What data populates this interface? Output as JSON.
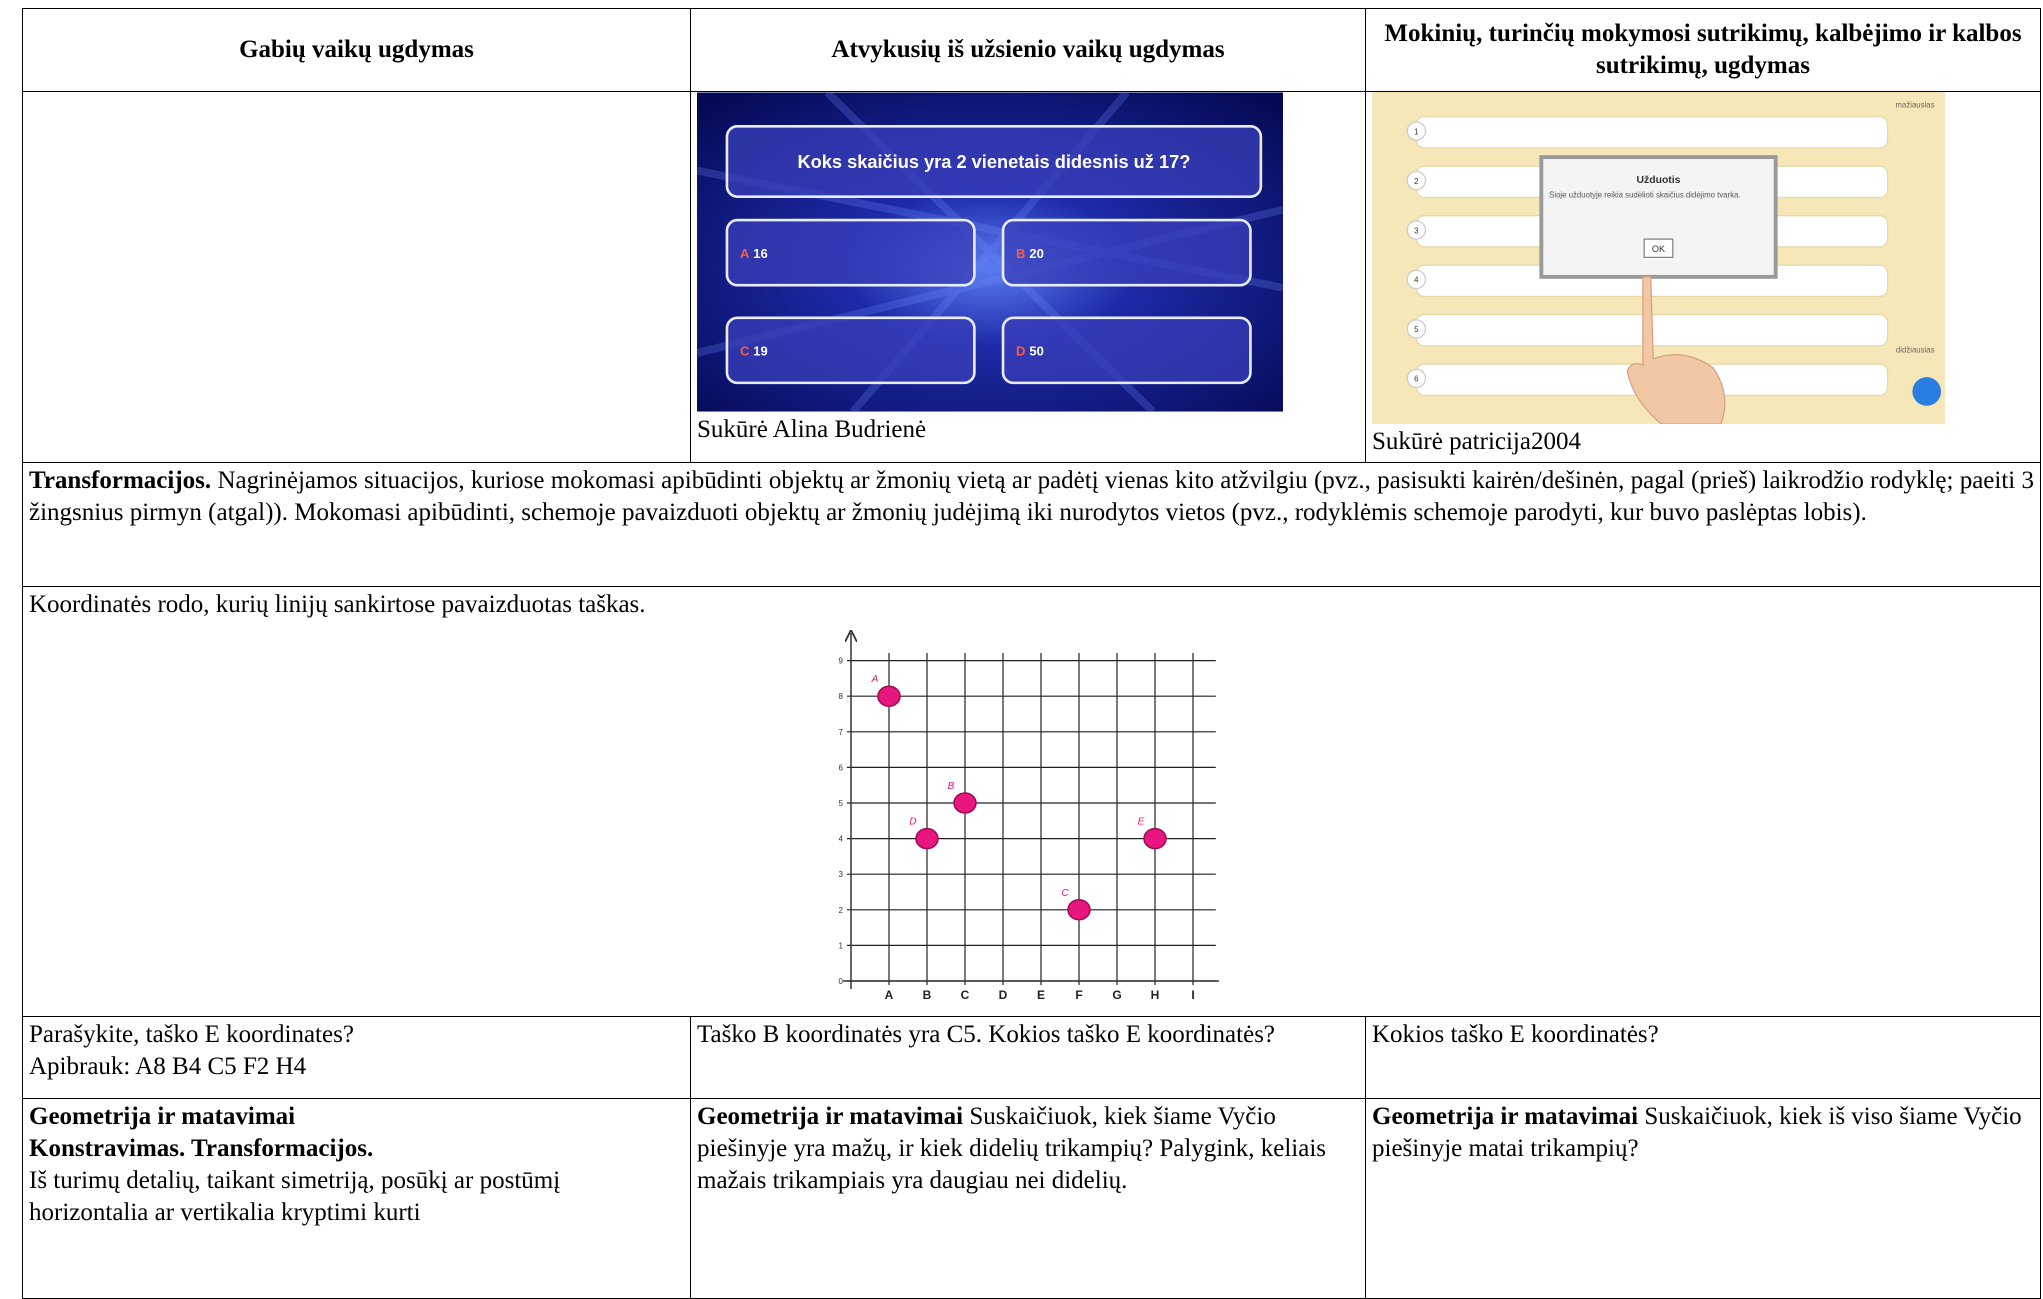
{
  "table": {
    "headers": [
      "Gabių vaikų ugdymas",
      "Atvykusių iš užsienio vaikų ugdymas",
      "Mokinių, turinčių mokymosi sutrikimų, kalbėjimo ir kalbos sutrikimų, ugdymas"
    ],
    "quiz": {
      "question": "Koks skaičius yra 2 vienetais didesnis už 17?",
      "options": [
        {
          "letter": "A",
          "text": "16"
        },
        {
          "letter": "B",
          "text": "20"
        },
        {
          "letter": "C",
          "text": "19"
        },
        {
          "letter": "D",
          "text": "50"
        }
      ],
      "caption": "Sukūrė Alina Budrienė"
    },
    "app": {
      "title": "Užduotis",
      "text": "Šioje užduotyje reikia sudėlioti skaičius didėjimo tvarka.",
      "button": "OK",
      "top_label": "mažiausias",
      "bottom_label": "didžiausias",
      "rows": [
        "1",
        "2",
        "3",
        "4",
        "5",
        "6"
      ],
      "caption": "Sukūrė patricija2004"
    },
    "transform": {
      "bold": "Transformacijos.",
      "text": "Nagrinėjamos situacijos, kuriose mokomasi apibūdinti objektų ar žmonių vietą ar padėtį vienas kito atžvilgiu (pvz., pasisukti kairėn/dešinėn, pagal (prieš) laikrodžio rodyklę; paeiti 3 žingsnius pirmyn (atgal)). Mokomasi apibūdinti, schemoje pavaizduoti objektų ar žmonių judėjimą iki nurodytos vietos (pvz., rodyklėmis schemoje parodyti, kur buvo paslėptas lobis)."
    },
    "coordinates": {
      "text": "Koordinatės rodo, kurių linijų sankirtose pavaizduotas taškas.",
      "x_labels": [
        "A",
        "B",
        "C",
        "D",
        "E",
        "F",
        "G",
        "H",
        "I"
      ],
      "y_labels": [
        0,
        1,
        2,
        3,
        4,
        5,
        6,
        7,
        8,
        9
      ],
      "points": [
        {
          "label": "A",
          "col": "A",
          "row": 8
        },
        {
          "label": "B",
          "col": "C",
          "row": 5
        },
        {
          "label": "C",
          "col": "F",
          "row": 2
        },
        {
          "label": "D",
          "col": "B",
          "row": 4
        },
        {
          "label": "E",
          "col": "H",
          "row": 4
        }
      ]
    },
    "questions": [
      [
        "Parašykite, taško E koordinates?",
        "Apibrauk: A8 B4 C5 F2 H4"
      ],
      [
        "Taško B koordinatės yra C5. Kokios taško E koordinatės?"
      ],
      [
        "Kokios taško E koordinatės?"
      ]
    ],
    "geometry": [
      {
        "bold": [
          "Geometrija ir matavimai",
          "Konstravimas. Transformacijos."
        ],
        "text": "Iš turimų detalių, taikant simetriją, posūkį ar postūmį horizontalia ar vertikalia kryptimi kurti"
      },
      {
        "bold": [
          "Geometrija ir matavimai"
        ],
        "text": "Suskaičiuok, kiek šiame Vyčio piešinyje yra mažų, ir kiek didelių trikampių? Palygink, keliais mažais trikampiais yra daugiau nei didelių."
      },
      {
        "bold": [
          "Geometrija ir matavimai"
        ],
        "text": "Suskaičiuok, kiek iš viso šiame Vyčio piešinyje matai trikampių?"
      }
    ]
  }
}
